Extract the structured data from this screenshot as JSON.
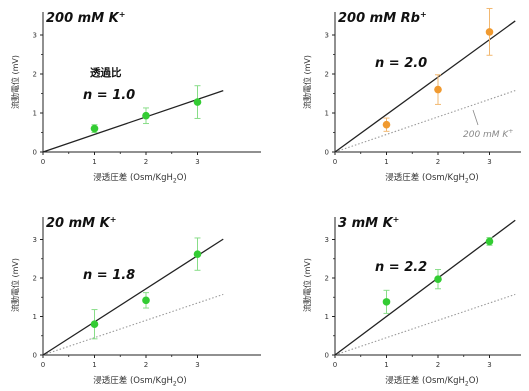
{
  "colors": {
    "axis": "#222222",
    "fit_line": "#222222",
    "reference_line": "#9a9a9a",
    "potassium_marker": "#33cc33",
    "potassium_errorbar": "#88dd88",
    "rubidium_marker": "#f09a30",
    "rubidium_errorbar": "#f2b871",
    "reference_label": "#888888"
  },
  "chart_data": [
    {
      "type": "scatter",
      "title": "200 mM K",
      "title_superscript": "+",
      "xlabel": "浸透圧差 (Osm/KgH",
      "xlabel_sub": "2",
      "xlabel_end": "O)",
      "ylabel": "流動電位 (mV)",
      "xlim": [
        0,
        3.5
      ],
      "ylim": [
        0,
        3.5
      ],
      "xticks": [
        "0",
        "1",
        "2",
        "3"
      ],
      "yticks": [
        "0",
        "1",
        "2",
        "3"
      ],
      "annotation_top": "透過比",
      "annotation": "n = 1.0",
      "marker_color": "#33cc33",
      "errorbar_color": "#88dd88",
      "points": [
        {
          "x": 1,
          "y": 0.6,
          "err": 0.1
        },
        {
          "x": 2,
          "y": 0.93,
          "err": 0.2
        },
        {
          "x": 3,
          "y": 1.28,
          "err": 0.42
        }
      ],
      "fit_line": {
        "slope": 0.45,
        "x_end": 3.5
      },
      "reference_line": null,
      "reference_label": ""
    },
    {
      "type": "scatter",
      "title": "200 mM Rb",
      "title_superscript": "+",
      "xlabel": "浸透圧差 (Osm/KgH",
      "xlabel_sub": "2",
      "xlabel_end": "O)",
      "ylabel": "流動電位 (mV)",
      "xlim": [
        0,
        3.5
      ],
      "ylim": [
        0,
        3.5
      ],
      "xticks": [
        "0",
        "1",
        "2",
        "3"
      ],
      "yticks": [
        "0",
        "1",
        "2",
        "3"
      ],
      "annotation_top": "",
      "annotation": "n = 2.0",
      "marker_color": "#f09a30",
      "errorbar_color": "#f2b871",
      "points": [
        {
          "x": 1,
          "y": 0.7,
          "err": 0.17
        },
        {
          "x": 2,
          "y": 1.6,
          "err": 0.38
        },
        {
          "x": 3,
          "y": 3.08,
          "err": 0.6
        }
      ],
      "fit_line": {
        "slope": 0.96,
        "x_end": 3.5
      },
      "reference_line": {
        "slope": 0.45,
        "x_end": 3.5
      },
      "reference_label": "200 mM K",
      "reference_label_superscript": "+"
    },
    {
      "type": "scatter",
      "title": "20 mM K",
      "title_superscript": "+",
      "xlabel": "浸透圧差 (Osm/KgH",
      "xlabel_sub": "2",
      "xlabel_end": "O)",
      "ylabel": "流動電位 (mV)",
      "xlim": [
        0,
        3.5
      ],
      "ylim": [
        0,
        3.5
      ],
      "xticks": [
        "0",
        "1",
        "2",
        "3"
      ],
      "yticks": [
        "0",
        "1",
        "2",
        "3"
      ],
      "annotation_top": "",
      "annotation": "n = 1.8",
      "marker_color": "#33cc33",
      "errorbar_color": "#88dd88",
      "points": [
        {
          "x": 1,
          "y": 0.8,
          "err": 0.38
        },
        {
          "x": 2,
          "y": 1.42,
          "err": 0.2
        },
        {
          "x": 3,
          "y": 2.62,
          "err": 0.42
        }
      ],
      "fit_line": {
        "slope": 0.86,
        "x_end": 3.5
      },
      "reference_line": {
        "slope": 0.45,
        "x_end": 3.5
      },
      "reference_label": ""
    },
    {
      "type": "scatter",
      "title": "3 mM K",
      "title_superscript": "+",
      "xlabel": "浸透圧差 (Osm/KgH",
      "xlabel_sub": "2",
      "xlabel_end": "O)",
      "ylabel": "流動電位 (mV)",
      "xlim": [
        0,
        3.5
      ],
      "ylim": [
        0,
        3.5
      ],
      "xticks": [
        "0",
        "1",
        "2",
        "3"
      ],
      "yticks": [
        "0",
        "1",
        "2",
        "3"
      ],
      "annotation_top": "",
      "annotation": "n = 2.2",
      "marker_color": "#33cc33",
      "errorbar_color": "#88dd88",
      "points": [
        {
          "x": 1,
          "y": 1.38,
          "err": 0.3
        },
        {
          "x": 2,
          "y": 1.97,
          "err": 0.25
        },
        {
          "x": 3,
          "y": 2.95,
          "err": 0.1
        }
      ],
      "fit_line": {
        "slope": 1.0,
        "x_end": 3.5
      },
      "reference_line": {
        "slope": 0.45,
        "x_end": 3.5
      },
      "reference_label": ""
    }
  ]
}
